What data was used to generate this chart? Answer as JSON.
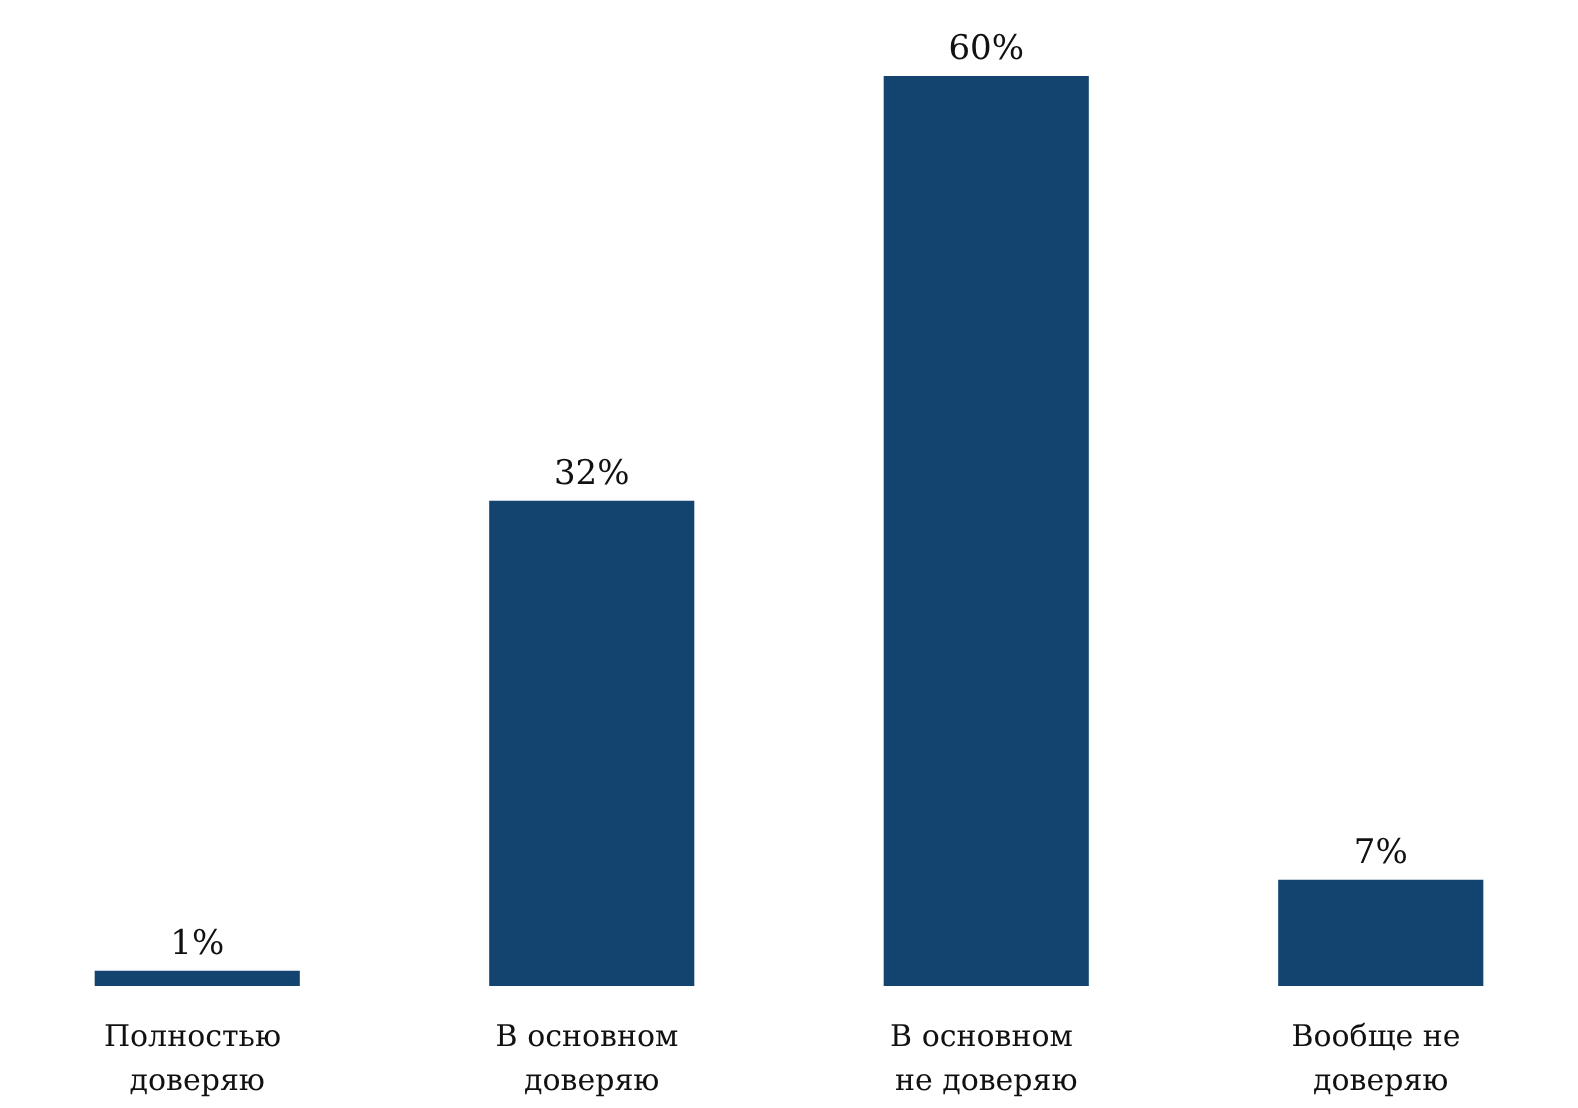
{
  "chart_data": {
    "type": "bar",
    "categories": [
      "Полностью доверяю",
      "В основном доверяю",
      "В основном не доверяю",
      "Вообще не доверяю"
    ],
    "values": [
      1,
      32,
      60,
      7
    ],
    "value_labels": [
      "1%",
      "32%",
      "60%",
      "7%"
    ],
    "color": "#12446f",
    "grid": false
  }
}
